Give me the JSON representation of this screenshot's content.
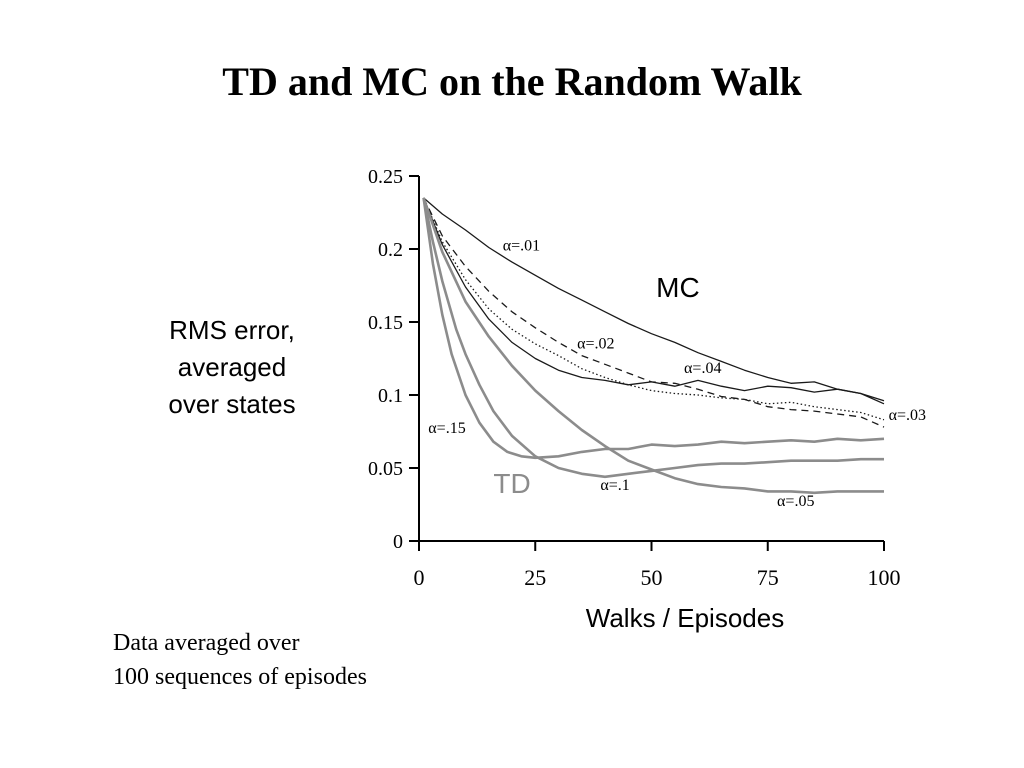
{
  "slide": {
    "title": "TD and MC on the Random Walk",
    "footnote_lines": [
      "Data averaged over",
      "100 sequences of episodes"
    ]
  },
  "colors": {
    "mc": "#1a1a1a",
    "td": "#8c8c8c",
    "axis": "#000000"
  },
  "chart_data": {
    "type": "line",
    "ylabel_lines": [
      "RMS error,",
      "averaged",
      "over states"
    ],
    "xlabel": "Walks / Episodes",
    "xlim": [
      0,
      100
    ],
    "ylim": [
      0,
      0.25
    ],
    "xticks": [
      0,
      25,
      50,
      75,
      100
    ],
    "xtick_labels": [
      "0",
      "25",
      "50",
      "75",
      "100"
    ],
    "yticks": [
      0,
      0.05,
      0.1,
      0.15,
      0.2,
      0.25
    ],
    "ytick_labels": [
      "0",
      "0.05",
      "0.1",
      "0.15",
      "0.2",
      "0.25"
    ],
    "group_labels": [
      {
        "text": "MC",
        "group": "mc",
        "x": 51,
        "y": 0.167
      },
      {
        "text": "TD",
        "group": "td",
        "x": 16,
        "y": 0.033
      }
    ],
    "annotations": [
      {
        "text": "α=.01",
        "x": 18,
        "y": 0.199
      },
      {
        "text": "α=.02",
        "x": 34,
        "y": 0.132
      },
      {
        "text": "α=.04",
        "x": 57,
        "y": 0.115
      },
      {
        "text": "α=.03",
        "x": 101,
        "y": 0.083
      },
      {
        "text": "α=.15",
        "x": 2,
        "y": 0.074
      },
      {
        "text": "α=.1",
        "x": 39,
        "y": 0.035
      },
      {
        "text": "α=.05",
        "x": 77,
        "y": 0.024
      }
    ],
    "series": [
      {
        "group": "mc",
        "style": "solid",
        "x": [
          1,
          5,
          10,
          15,
          20,
          25,
          30,
          35,
          40,
          45,
          50,
          55,
          60,
          65,
          70,
          75,
          80,
          85,
          90,
          95,
          100
        ],
        "y": [
          0.235,
          0.224,
          0.213,
          0.201,
          0.191,
          0.182,
          0.173,
          0.165,
          0.157,
          0.149,
          0.142,
          0.136,
          0.129,
          0.123,
          0.117,
          0.112,
          0.108,
          0.109,
          0.104,
          0.101,
          0.096
        ]
      },
      {
        "group": "mc",
        "style": "dashed",
        "x": [
          1,
          5,
          10,
          15,
          20,
          25,
          30,
          35,
          40,
          45,
          50,
          55,
          60,
          65,
          70,
          75,
          80,
          85,
          90,
          95,
          100
        ],
        "y": [
          0.235,
          0.209,
          0.188,
          0.171,
          0.157,
          0.146,
          0.136,
          0.127,
          0.121,
          0.115,
          0.109,
          0.108,
          0.104,
          0.099,
          0.097,
          0.092,
          0.09,
          0.089,
          0.087,
          0.085,
          0.078
        ]
      },
      {
        "group": "mc",
        "style": "dotted",
        "x": [
          1,
          5,
          10,
          15,
          20,
          25,
          30,
          35,
          40,
          45,
          50,
          55,
          60,
          65,
          70,
          75,
          80,
          85,
          90,
          95,
          100
        ],
        "y": [
          0.235,
          0.205,
          0.179,
          0.159,
          0.145,
          0.135,
          0.127,
          0.118,
          0.112,
          0.107,
          0.103,
          0.101,
          0.1,
          0.098,
          0.097,
          0.094,
          0.095,
          0.092,
          0.09,
          0.088,
          0.083
        ]
      },
      {
        "group": "mc",
        "style": "solid",
        "x": [
          1,
          5,
          10,
          15,
          20,
          25,
          30,
          35,
          40,
          45,
          50,
          55,
          60,
          65,
          70,
          75,
          80,
          85,
          90,
          95,
          100
        ],
        "y": [
          0.235,
          0.203,
          0.174,
          0.152,
          0.136,
          0.125,
          0.117,
          0.112,
          0.11,
          0.107,
          0.109,
          0.106,
          0.11,
          0.106,
          0.103,
          0.106,
          0.105,
          0.102,
          0.104,
          0.101,
          0.094
        ]
      },
      {
        "group": "td",
        "style": "solid",
        "x": [
          1,
          3,
          5,
          7,
          10,
          13,
          16,
          19,
          22,
          25,
          30,
          35,
          40,
          45,
          50,
          55,
          60,
          65,
          70,
          75,
          80,
          85,
          90,
          95,
          100
        ],
        "y": [
          0.235,
          0.19,
          0.155,
          0.128,
          0.1,
          0.081,
          0.068,
          0.061,
          0.058,
          0.057,
          0.058,
          0.061,
          0.063,
          0.063,
          0.066,
          0.065,
          0.066,
          0.068,
          0.067,
          0.068,
          0.069,
          0.068,
          0.07,
          0.069,
          0.07
        ]
      },
      {
        "group": "td",
        "style": "solid",
        "x": [
          1,
          3,
          5,
          8,
          10,
          13,
          16,
          20,
          25,
          30,
          35,
          40,
          45,
          50,
          55,
          60,
          65,
          70,
          75,
          80,
          85,
          90,
          95,
          100
        ],
        "y": [
          0.235,
          0.205,
          0.178,
          0.145,
          0.128,
          0.107,
          0.089,
          0.072,
          0.058,
          0.05,
          0.046,
          0.044,
          0.046,
          0.048,
          0.05,
          0.052,
          0.053,
          0.053,
          0.054,
          0.055,
          0.055,
          0.055,
          0.056,
          0.056
        ]
      },
      {
        "group": "td",
        "style": "solid",
        "x": [
          1,
          5,
          10,
          15,
          20,
          25,
          30,
          35,
          40,
          45,
          50,
          55,
          60,
          65,
          70,
          75,
          80,
          85,
          90,
          95,
          100
        ],
        "y": [
          0.235,
          0.198,
          0.164,
          0.14,
          0.12,
          0.103,
          0.089,
          0.076,
          0.065,
          0.055,
          0.049,
          0.043,
          0.039,
          0.037,
          0.036,
          0.034,
          0.034,
          0.033,
          0.034,
          0.034,
          0.034
        ]
      }
    ]
  }
}
